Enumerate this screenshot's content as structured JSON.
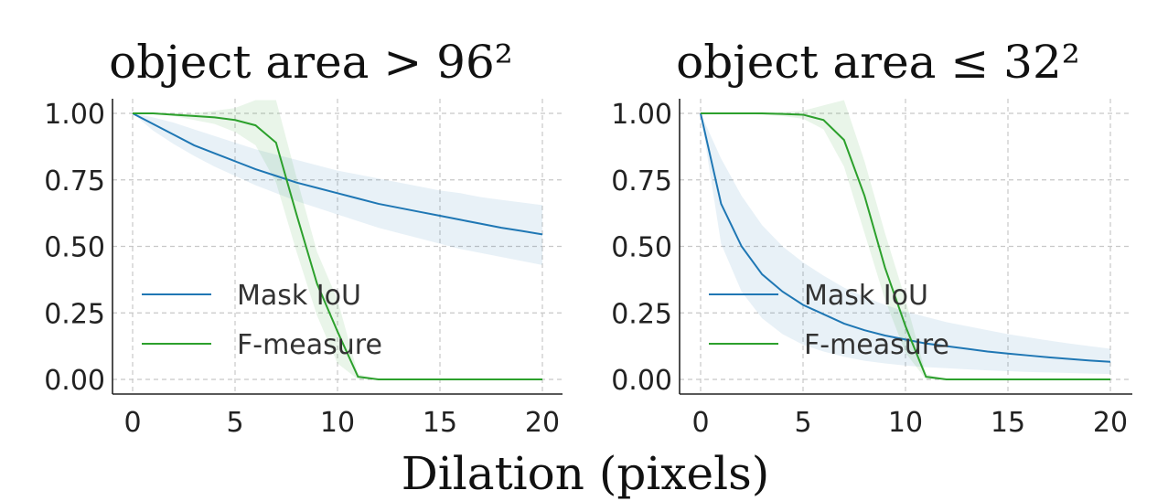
{
  "chart_data": [
    {
      "type": "line",
      "title": "object area > 96²",
      "xlim": [
        0,
        20
      ],
      "ylim": [
        0,
        1
      ],
      "xticks": [
        "0",
        "5",
        "10",
        "15",
        "20"
      ],
      "yticks": [
        "0.00",
        "0.25",
        "0.50",
        "0.75",
        "1.00"
      ],
      "grid": true,
      "legend": "lower-left",
      "series": [
        {
          "name": "Mask IoU",
          "color": "#1f77b4",
          "x": [
            0,
            1,
            2,
            3,
            4,
            5,
            6,
            7,
            8,
            9,
            10,
            11,
            12,
            13,
            14,
            15,
            16,
            17,
            18,
            19,
            20
          ],
          "y": [
            1.0,
            0.96,
            0.92,
            0.88,
            0.85,
            0.82,
            0.79,
            0.765,
            0.74,
            0.72,
            0.7,
            0.68,
            0.66,
            0.645,
            0.63,
            0.615,
            0.6,
            0.585,
            0.57,
            0.558,
            0.545
          ],
          "band_low": [
            1.0,
            0.935,
            0.885,
            0.84,
            0.8,
            0.765,
            0.73,
            0.7,
            0.67,
            0.645,
            0.62,
            0.595,
            0.57,
            0.55,
            0.53,
            0.51,
            0.49,
            0.475,
            0.46,
            0.445,
            0.43
          ],
          "band_high": [
            1.0,
            0.985,
            0.965,
            0.94,
            0.915,
            0.89,
            0.865,
            0.845,
            0.825,
            0.805,
            0.785,
            0.77,
            0.755,
            0.74,
            0.725,
            0.71,
            0.7,
            0.685,
            0.675,
            0.665,
            0.655
          ]
        },
        {
          "name": "F-measure",
          "color": "#2ca02c",
          "x": [
            0,
            1,
            2,
            3,
            4,
            5,
            6,
            7,
            8,
            9,
            10,
            11,
            12,
            13,
            14,
            15,
            16,
            17,
            18,
            19,
            20
          ],
          "y": [
            1.0,
            1.0,
            0.995,
            0.99,
            0.985,
            0.975,
            0.955,
            0.89,
            0.62,
            0.36,
            0.18,
            0.01,
            0.0,
            0.0,
            0.0,
            0.0,
            0.0,
            0.0,
            0.0,
            0.0,
            0.0
          ],
          "band_low": [
            1.0,
            1.0,
            0.99,
            0.975,
            0.96,
            0.93,
            0.88,
            0.74,
            0.48,
            0.24,
            0.06,
            0.0,
            0.0,
            0.0,
            0.0,
            0.0,
            0.0,
            0.0,
            0.0,
            0.0,
            0.0
          ],
          "band_high": [
            1.0,
            1.0,
            1.0,
            1.0,
            1.01,
            1.02,
            1.05,
            1.05,
            0.76,
            0.48,
            0.3,
            0.02,
            0.0,
            0.0,
            0.0,
            0.0,
            0.0,
            0.0,
            0.0,
            0.0,
            0.0
          ]
        }
      ]
    },
    {
      "type": "line",
      "title": "object area ≤ 32²",
      "xlim": [
        0,
        20
      ],
      "ylim": [
        0,
        1
      ],
      "xticks": [
        "0",
        "5",
        "10",
        "15",
        "20"
      ],
      "yticks": [
        "0.00",
        "0.25",
        "0.50",
        "0.75",
        "1.00"
      ],
      "grid": true,
      "legend": "lower-left",
      "series": [
        {
          "name": "Mask IoU",
          "color": "#1f77b4",
          "x": [
            0,
            1,
            2,
            3,
            4,
            5,
            6,
            7,
            8,
            9,
            10,
            11,
            12,
            13,
            14,
            15,
            16,
            17,
            18,
            19,
            20
          ],
          "y": [
            1.0,
            0.66,
            0.5,
            0.395,
            0.33,
            0.28,
            0.245,
            0.21,
            0.185,
            0.165,
            0.15,
            0.135,
            0.125,
            0.115,
            0.105,
            0.097,
            0.09,
            0.083,
            0.077,
            0.071,
            0.066
          ],
          "band_low": [
            1.0,
            0.51,
            0.33,
            0.23,
            0.17,
            0.13,
            0.105,
            0.085,
            0.07,
            0.06,
            0.052,
            0.046,
            0.042,
            0.038,
            0.034,
            0.031,
            0.028,
            0.026,
            0.024,
            0.022,
            0.02
          ],
          "band_high": [
            1.0,
            0.83,
            0.69,
            0.58,
            0.5,
            0.44,
            0.39,
            0.345,
            0.31,
            0.28,
            0.255,
            0.235,
            0.215,
            0.2,
            0.185,
            0.17,
            0.158,
            0.146,
            0.135,
            0.125,
            0.115
          ]
        },
        {
          "name": "F-measure",
          "color": "#2ca02c",
          "x": [
            0,
            1,
            2,
            3,
            4,
            5,
            6,
            7,
            8,
            9,
            10,
            11,
            12,
            13,
            14,
            15,
            16,
            17,
            18,
            19,
            20
          ],
          "y": [
            1.0,
            1.0,
            1.0,
            1.0,
            0.998,
            0.995,
            0.975,
            0.9,
            0.69,
            0.42,
            0.2,
            0.01,
            0.0,
            0.0,
            0.0,
            0.0,
            0.0,
            0.0,
            0.0,
            0.0,
            0.0
          ],
          "band_low": [
            1.0,
            1.0,
            1.0,
            0.995,
            0.99,
            0.98,
            0.94,
            0.8,
            0.55,
            0.3,
            0.1,
            0.0,
            0.0,
            0.0,
            0.0,
            0.0,
            0.0,
            0.0,
            0.0,
            0.0,
            0.0
          ],
          "band_high": [
            1.0,
            1.0,
            1.0,
            1.0,
            1.005,
            1.01,
            1.03,
            1.05,
            0.82,
            0.55,
            0.3,
            0.02,
            0.0,
            0.0,
            0.0,
            0.0,
            0.0,
            0.0,
            0.0,
            0.0,
            0.0
          ]
        }
      ]
    }
  ],
  "shared_xlabel": "Dilation (pixels)"
}
